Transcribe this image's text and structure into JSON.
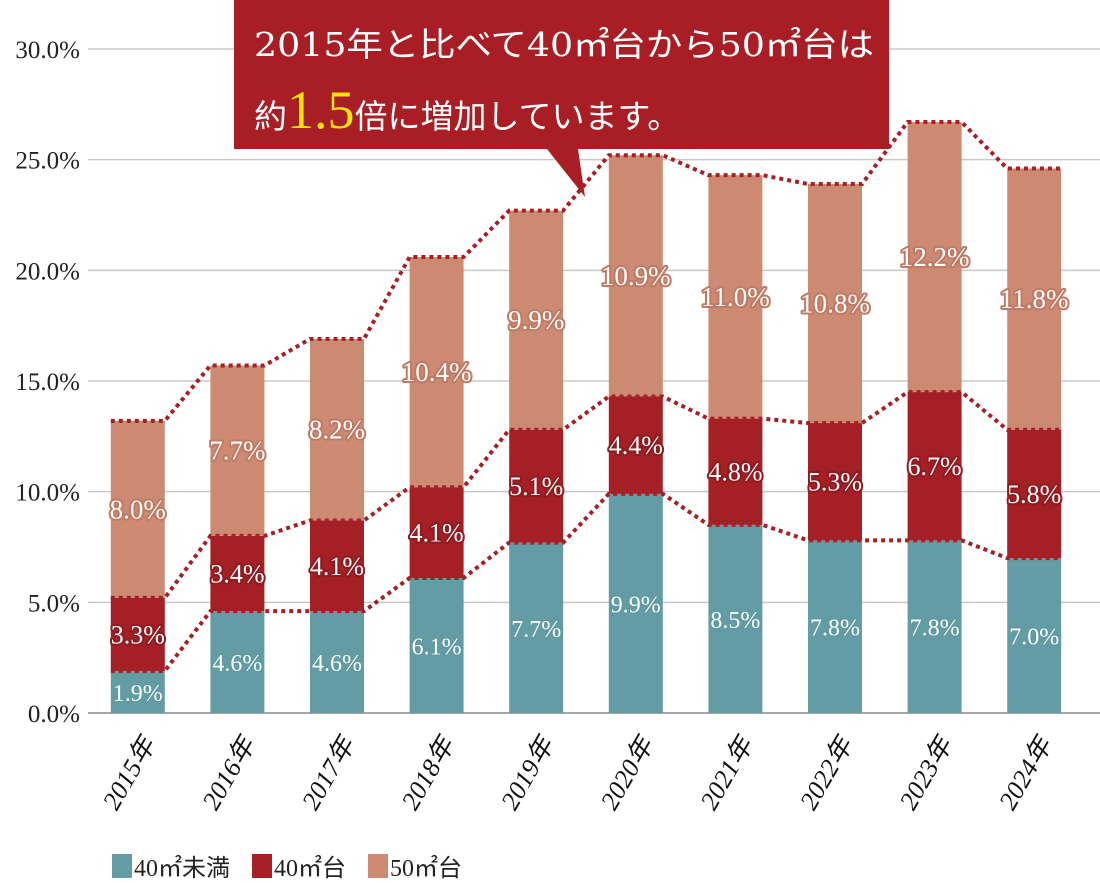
{
  "chart_data": {
    "type": "bar",
    "stacked": true,
    "categories": [
      "2015年",
      "2016年",
      "2017年",
      "2018年",
      "2019年",
      "2020年",
      "2021年",
      "2022年",
      "2023年",
      "2024年"
    ],
    "series": [
      {
        "name": "40㎡未満",
        "color": "#639ca5",
        "values": [
          1.9,
          4.6,
          4.6,
          6.1,
          7.7,
          9.9,
          8.5,
          7.8,
          7.8,
          7.0
        ],
        "labels": [
          "1.9%",
          "4.6%",
          "4.6%",
          "6.1%",
          "7.7%",
          "9.9%",
          "8.5%",
          "7.8%",
          "7.8%",
          "7.0%"
        ]
      },
      {
        "name": "40㎡台",
        "color": "#a52025",
        "values": [
          3.3,
          3.4,
          4.1,
          4.1,
          5.1,
          4.4,
          4.8,
          5.3,
          6.7,
          5.8
        ],
        "labels": [
          "3.3%",
          "3.4%",
          "4.1%",
          "4.1%",
          "5.1%",
          "4.4%",
          "4.8%",
          "5.3%",
          "6.7%",
          "5.8%"
        ]
      },
      {
        "name": "50㎡台",
        "color": "#cc8a72",
        "values": [
          8.0,
          7.7,
          8.2,
          10.4,
          9.9,
          10.9,
          11.0,
          10.8,
          12.2,
          11.8
        ],
        "labels": [
          "8.0%",
          "7.7%",
          "8.2%",
          "10.4%",
          "9.9%",
          "10.9%",
          "11.0%",
          "10.8%",
          "12.2%",
          "11.8%"
        ]
      }
    ],
    "ylim": [
      0,
      30
    ],
    "yticks": [
      0,
      5,
      10,
      15,
      20,
      25,
      30
    ],
    "ytick_labels": [
      "0.0%",
      "5.0%",
      "10.0%",
      "15.0%",
      "20.0%",
      "25.0%",
      "30.0%"
    ],
    "grid": true,
    "connector_lines": "dotted",
    "connector_color": "#a52025",
    "legend_position": "bottom-left",
    "title": "",
    "xlabel": "",
    "ylabel": ""
  },
  "callout": {
    "line1": "2015年と比べて40㎡台から50㎡台は",
    "line2_prefix": "約",
    "line2_emphasis": "1.5",
    "line2_suffix": "倍に増加しています。",
    "background": "#a81e24",
    "emphasis_color": "#ffe600"
  },
  "legend": {
    "items": [
      {
        "label": "40㎡未満",
        "color": "#639ca5"
      },
      {
        "label": "40㎡台",
        "color": "#a52025"
      },
      {
        "label": "50㎡台",
        "color": "#cc8a72"
      }
    ]
  }
}
